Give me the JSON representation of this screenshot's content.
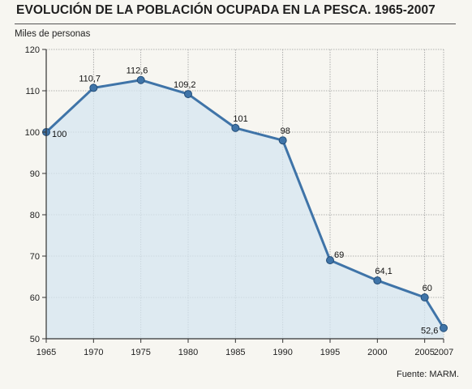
{
  "chart_data": {
    "type": "area",
    "title": "EVOLUCIÓN DE LA POBLACIÓN OCUPADA EN LA PESCA. 1965-2007",
    "ylabel": "Miles de personas",
    "xlabel": "",
    "source": "Fuente: MARM.",
    "x": [
      1965,
      1970,
      1975,
      1980,
      1985,
      1990,
      1995,
      2000,
      2005,
      2007
    ],
    "values": [
      100,
      110.7,
      112.6,
      109.2,
      101,
      98,
      69,
      64.1,
      60,
      52.6
    ],
    "data_labels": [
      "100",
      "110,7",
      "112,6",
      "109,2",
      "101",
      "98",
      "69",
      "64,1",
      "60",
      "52,6"
    ],
    "x_ticks": [
      "1965",
      "1970",
      "1975",
      "1980",
      "1985",
      "1990",
      "1995",
      "2000",
      "2005",
      "2007"
    ],
    "y_ticks": [
      "50",
      "60",
      "70",
      "80",
      "90",
      "100",
      "110",
      "120"
    ],
    "ylim": [
      50,
      120
    ],
    "xlim": [
      1965,
      2007
    ],
    "grid": true,
    "colors": {
      "line": "#3f74a8",
      "fill": "#d6e6f0",
      "grid": "#9a9a9a"
    }
  }
}
